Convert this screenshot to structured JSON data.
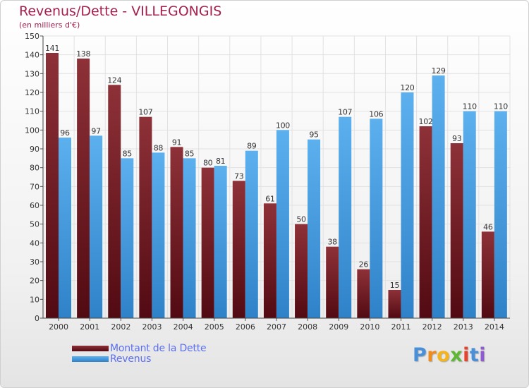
{
  "title": "Revenus/Dette - VILLEGONGIS",
  "subtitle": "(en milliers d'€)",
  "logo": {
    "letters": [
      "P",
      "r",
      "o",
      "x",
      "i",
      "t",
      "i"
    ],
    "colors": [
      "#4a90d9",
      "#f08c1e",
      "#f5b31c",
      "#5fb835",
      "#e8412c",
      "#4a90d9",
      "#8e5bd0"
    ]
  },
  "chart_data": {
    "type": "bar",
    "categories": [
      "2000",
      "2001",
      "2002",
      "2003",
      "2004",
      "2005",
      "2006",
      "2007",
      "2008",
      "2009",
      "2010",
      "2011",
      "2012",
      "2013",
      "2014"
    ],
    "series": [
      {
        "name": "Montant de la Dette",
        "color": "#7a1f25",
        "values": [
          141,
          138,
          124,
          107,
          91,
          80,
          73,
          61,
          50,
          38,
          26,
          15,
          102,
          93,
          46
        ]
      },
      {
        "name": "Revenus",
        "color": "#4a9fe0",
        "values": [
          96,
          97,
          85,
          88,
          85,
          81,
          89,
          100,
          95,
          107,
          106,
          120,
          129,
          110,
          110
        ]
      }
    ],
    "ylim": [
      0,
      150
    ],
    "yticks": [
      0,
      10,
      20,
      30,
      40,
      50,
      60,
      70,
      80,
      90,
      100,
      110,
      120,
      130,
      140,
      150
    ],
    "grid": true,
    "legend": "bottom-left"
  }
}
